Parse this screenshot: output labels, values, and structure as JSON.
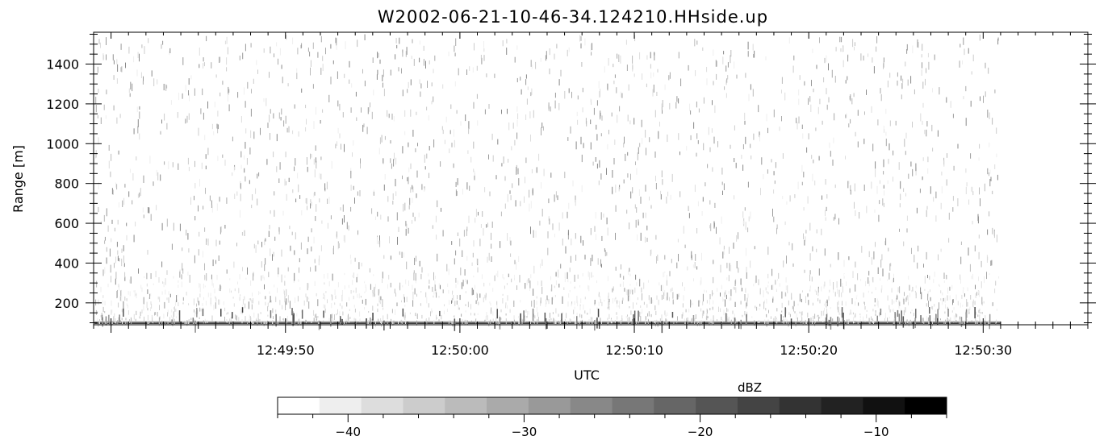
{
  "chart_data": {
    "type": "heatmap",
    "title": "W2002-06-21-10-46-34.124210.HHside.up",
    "xlabel": "UTC",
    "ylabel": "Range [m]",
    "x_start": "12:49:39",
    "x_end": "12:50:36",
    "data_end": "12:50:31",
    "x_ticks": [
      "12:49:50",
      "12:50:00",
      "12:50:10",
      "12:50:20",
      "12:50:30"
    ],
    "ylim": [
      90,
      1560
    ],
    "y_ticks": [
      200,
      400,
      600,
      800,
      1000,
      1200,
      1400
    ],
    "colorbar": {
      "label": "dBZ",
      "range": [
        -44,
        -6
      ],
      "ticks": [
        -40,
        -30,
        -20,
        -10
      ],
      "levels": 16,
      "colormap": [
        "#ffffff",
        "#000000"
      ]
    },
    "description": "Radar reflectivity returns: dense strong echo near the lowest range gate (~90-110 m), sparse weak scattered echoes (-44 to -20 dBZ) throughout higher ranges up to ~1550 m."
  }
}
